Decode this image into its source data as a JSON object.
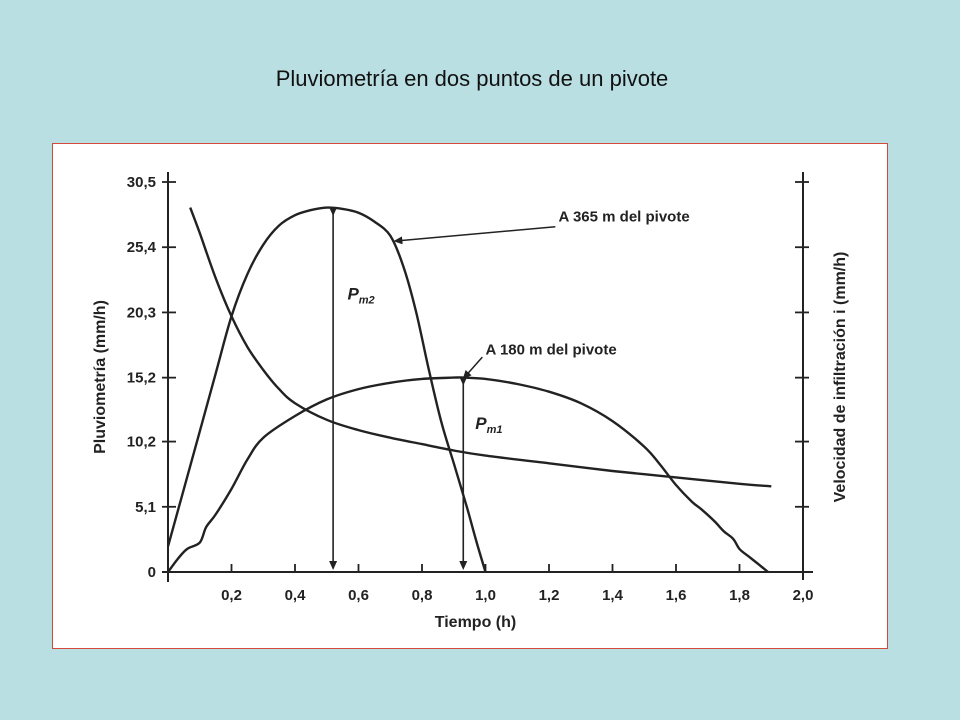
{
  "slide_title": "Pluviometría en dos puntos de un pivote",
  "chart_data": {
    "type": "line",
    "xlabel": "Tiempo (h)",
    "ylabel": "Pluviometría (mm/h)",
    "ylabel_right": "Velocidad de infiltración i (mm/h)",
    "xlim": [
      0,
      2.0
    ],
    "ylim": [
      0,
      30.5
    ],
    "x_tick_labels": [
      "0,2",
      "0,4",
      "0,6",
      "0,8",
      "1,0",
      "1,2",
      "1,4",
      "1,6",
      "1,8",
      "2,0"
    ],
    "x_tick_values": [
      0.2,
      0.4,
      0.6,
      0.8,
      1.0,
      1.2,
      1.4,
      1.6,
      1.8,
      2.0
    ],
    "y_tick_labels": [
      "0",
      "5,1",
      "10,2",
      "15,2",
      "20,3",
      "25,4",
      "30,5"
    ],
    "y_tick_values": [
      0,
      5.1,
      10.2,
      15.2,
      20.3,
      25.4,
      30.5
    ],
    "grid": false,
    "series": [
      {
        "name": "A 365 m del pivote",
        "x": [
          0.0,
          0.05,
          0.1,
          0.15,
          0.2,
          0.25,
          0.3,
          0.35,
          0.4,
          0.45,
          0.5,
          0.55,
          0.6,
          0.65,
          0.7,
          0.74,
          0.78,
          0.82,
          0.86,
          0.9,
          0.94,
          0.97,
          1.0
        ],
        "y": [
          2.0,
          6.5,
          11.0,
          15.5,
          20.0,
          23.3,
          25.6,
          27.1,
          27.9,
          28.3,
          28.5,
          28.4,
          28.1,
          27.4,
          26.3,
          24.0,
          20.5,
          16.0,
          11.8,
          8.5,
          5.2,
          2.5,
          0.0
        ],
        "annotation": "P",
        "annotation_sub": "m2",
        "annotation_x": 0.52
      },
      {
        "name": "A 180 m del pivote",
        "x": [
          0.0,
          0.03,
          0.06,
          0.1,
          0.12,
          0.15,
          0.2,
          0.25,
          0.3,
          0.4,
          0.5,
          0.6,
          0.7,
          0.8,
          0.9,
          0.93,
          1.0,
          1.1,
          1.2,
          1.3,
          1.4,
          1.5,
          1.55,
          1.6,
          1.65,
          1.68,
          1.72,
          1.75,
          1.78,
          1.8,
          1.83,
          1.86,
          1.89
        ],
        "y": [
          0.0,
          1.0,
          1.8,
          2.3,
          3.5,
          4.5,
          6.5,
          8.8,
          10.5,
          12.2,
          13.5,
          14.3,
          14.8,
          15.1,
          15.2,
          15.2,
          15.1,
          14.7,
          14.1,
          13.2,
          11.8,
          9.8,
          8.4,
          6.8,
          5.5,
          4.9,
          4.0,
          3.2,
          2.6,
          1.8,
          1.2,
          0.6,
          0.0
        ],
        "annotation": "P",
        "annotation_sub": "m1",
        "annotation_x": 0.93
      },
      {
        "name": "infiltración",
        "x": [
          0.07,
          0.1,
          0.15,
          0.2,
          0.25,
          0.3,
          0.35,
          0.4,
          0.5,
          0.6,
          0.7,
          0.8,
          0.9,
          1.0,
          1.2,
          1.4,
          1.6,
          1.8,
          1.9
        ],
        "y": [
          28.5,
          26.5,
          23.0,
          20.0,
          17.6,
          15.8,
          14.3,
          13.2,
          11.9,
          11.1,
          10.5,
          10.0,
          9.5,
          9.1,
          8.5,
          7.9,
          7.4,
          6.9,
          6.7
        ]
      }
    ]
  }
}
